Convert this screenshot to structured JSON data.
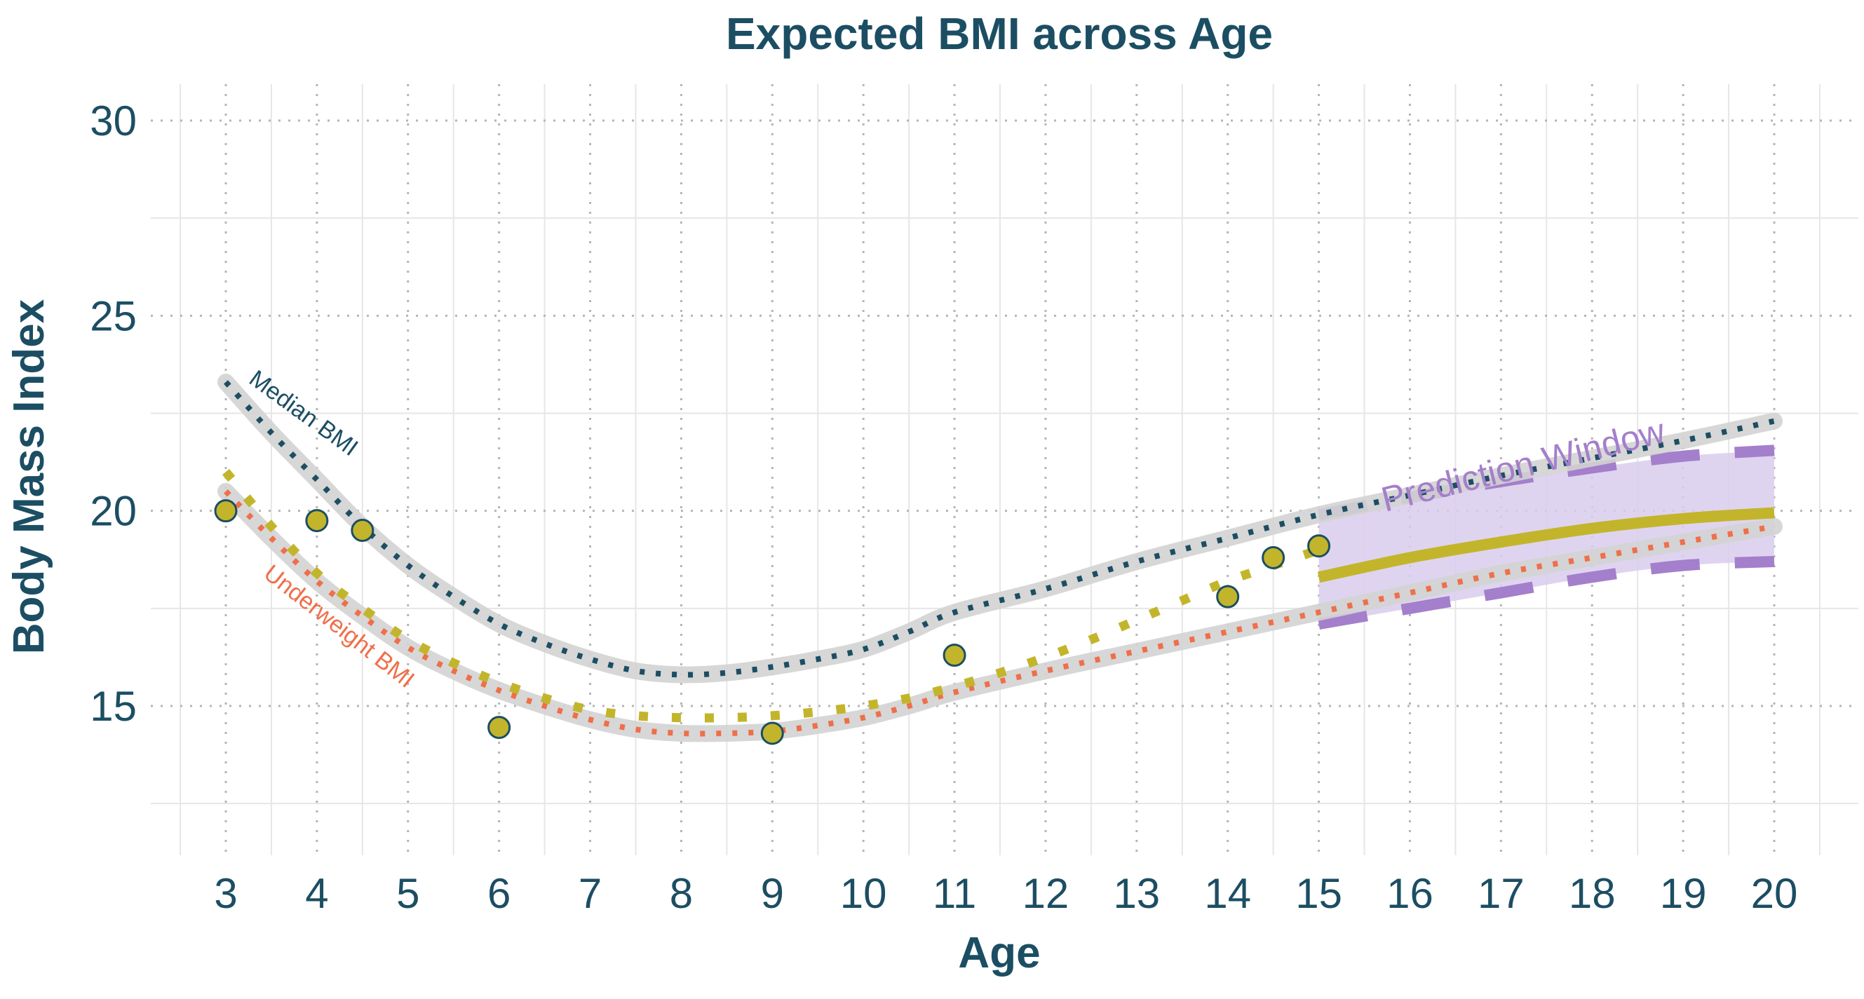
{
  "chart_data": {
    "type": "line",
    "title": "Expected BMI across Age",
    "xlabel": "Age",
    "ylabel": "Body Mass Index",
    "xlim": [
      2.5,
      20.5
    ],
    "ylim": [
      11,
      31
    ],
    "x_ticks": [
      3,
      4,
      5,
      6,
      7,
      8,
      9,
      10,
      11,
      12,
      13,
      14,
      15,
      16,
      17,
      18,
      19,
      20
    ],
    "y_ticks": [
      15,
      20,
      25,
      30
    ],
    "grid": true,
    "series": [
      {
        "name": "Median BMI",
        "style": "dotted",
        "color": "#1c4e63",
        "x": [
          3,
          3.5,
          4,
          4.5,
          5,
          5.5,
          6,
          6.5,
          7,
          7.5,
          8,
          8.5,
          9,
          9.5,
          10,
          10.5,
          11,
          12,
          13,
          14,
          15,
          16,
          17,
          18,
          19,
          20
        ],
        "y": [
          23.3,
          22.0,
          20.8,
          19.6,
          18.6,
          17.8,
          17.1,
          16.6,
          16.2,
          15.9,
          15.8,
          15.85,
          16.0,
          16.2,
          16.45,
          16.9,
          17.4,
          18.0,
          18.7,
          19.3,
          19.9,
          20.4,
          20.9,
          21.35,
          21.8,
          22.3
        ]
      },
      {
        "name": "Underweight BMI",
        "style": "dotted",
        "color": "#ef6f4a",
        "x": [
          3,
          3.5,
          4,
          4.5,
          5,
          5.5,
          6,
          6.5,
          7,
          7.5,
          8,
          8.5,
          9,
          9.5,
          10,
          10.5,
          11,
          12,
          13,
          14,
          15,
          16,
          17,
          18,
          19,
          20
        ],
        "y": [
          20.5,
          19.3,
          18.2,
          17.3,
          16.5,
          15.9,
          15.4,
          15.0,
          14.65,
          14.4,
          14.3,
          14.3,
          14.35,
          14.5,
          14.7,
          15.0,
          15.35,
          15.9,
          16.4,
          16.9,
          17.4,
          17.9,
          18.4,
          18.8,
          19.2,
          19.6
        ]
      },
      {
        "name": "",
        "style": "dotted",
        "color": "#c3b52b",
        "x": [
          3,
          3.5,
          4,
          4.5,
          5,
          5.5,
          6,
          6.5,
          7,
          7.5,
          8,
          8.5,
          9,
          9.5,
          10,
          10.5,
          11,
          11.5,
          12,
          12.5,
          13,
          13.5,
          14,
          14.5,
          15
        ],
        "y": [
          21.0,
          19.6,
          18.4,
          17.5,
          16.7,
          16.1,
          15.6,
          15.2,
          14.9,
          14.75,
          14.7,
          14.7,
          14.75,
          14.85,
          15.0,
          15.2,
          15.5,
          15.85,
          16.25,
          16.7,
          17.2,
          17.7,
          18.2,
          18.6,
          19.0
        ]
      },
      {
        "name": "",
        "style": "solid",
        "color": "#c3b52b",
        "x": [
          15,
          16,
          17,
          18,
          19,
          20
        ],
        "y": [
          18.3,
          18.8,
          19.2,
          19.55,
          19.8,
          19.95
        ]
      }
    ],
    "observations": {
      "x": [
        3,
        4,
        4.5,
        6,
        9,
        11,
        14,
        14.5,
        15
      ],
      "y": [
        20.0,
        19.75,
        19.5,
        14.45,
        14.3,
        16.3,
        17.8,
        18.8,
        19.1
      ]
    },
    "prediction_band": {
      "x": [
        15,
        16,
        17,
        18,
        19,
        20
      ],
      "upper": [
        19.9,
        20.35,
        20.75,
        21.1,
        21.4,
        21.55
      ],
      "lower": [
        17.1,
        17.5,
        17.9,
        18.3,
        18.6,
        18.7
      ]
    },
    "annotations": {
      "median": "Median BMI",
      "underweight": "Underweight BMI",
      "prediction": "Prediction Window"
    },
    "colors": {
      "band_fill": "#d9ccec",
      "band_edge": "#a47fcb",
      "highlight": "#d3d3d3",
      "point_fill": "#c3b52b",
      "point_edge": "#1c4e63"
    }
  }
}
